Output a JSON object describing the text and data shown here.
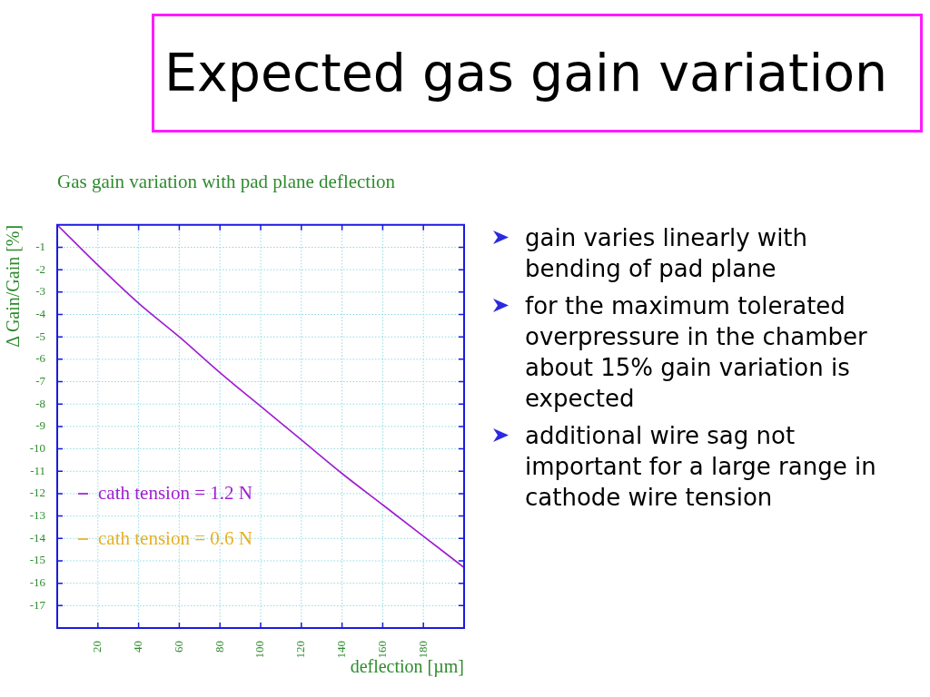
{
  "chart_data": {
    "type": "line",
    "title": "Expected gas gain variation",
    "subtitle": "Gas gain variation with pad plane deflection",
    "xlabel": "deflection [µm]",
    "ylabel": "Δ Gain/Gain [%]",
    "annotations": [
      "gain varies linearly with bending of pad plane",
      "for the maximum tolerated overpressure in the chamber about 15% gain variation is expected",
      "additional wire sag not important for a large range in cathode wire tension"
    ],
    "x": [
      0,
      20,
      40,
      60,
      80,
      100,
      120,
      140,
      160,
      180,
      200
    ],
    "series": [
      {
        "name": "cath tension = 1.2 N",
        "color": "#a020d0",
        "values": [
          0,
          -1.8,
          -3.5,
          -5.0,
          -6.6,
          -8.1,
          -9.6,
          -11.1,
          -12.5,
          -13.9,
          -15.3
        ]
      },
      {
        "name": "cath tension = 0.6 N",
        "color": "#e8b020",
        "values": [
          null,
          null,
          null,
          null,
          null,
          null,
          null,
          null,
          null,
          null,
          null
        ]
      }
    ],
    "xlim": [
      0,
      200
    ],
    "ylim": [
      -18,
      0
    ],
    "xticks": [
      20,
      40,
      60,
      80,
      100,
      120,
      140,
      160,
      180
    ],
    "yticks": [
      -1,
      -2,
      -3,
      -4,
      -5,
      -6,
      -7,
      -8,
      -9,
      -10,
      -11,
      -12,
      -13,
      -14,
      -15,
      -16,
      -17
    ],
    "grid": true,
    "legend": "bottom left"
  }
}
